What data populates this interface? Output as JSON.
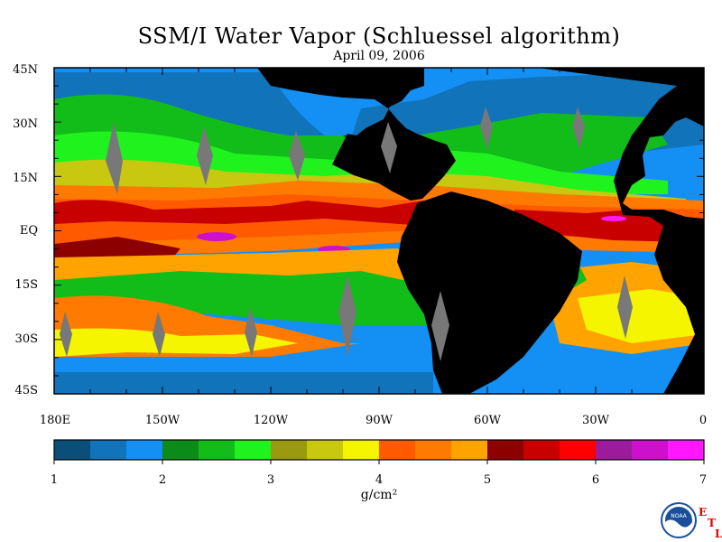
{
  "title": "SSM/I Water Vapor (Schluessel algorithm)",
  "subtitle": "April 09, 2006",
  "lat_labels": [
    "45N",
    "30N",
    "15N",
    "EQ",
    "15S",
    "30S",
    "45S"
  ],
  "lon_labels": [
    "180E",
    "150W",
    "120W",
    "90W",
    "60W",
    "30W",
    "0"
  ],
  "colorbar": {
    "ticks": [
      "1",
      "2",
      "3",
      "4",
      "5",
      "6",
      "7"
    ],
    "unit": "g/cm²",
    "colors": [
      "#0a4f7a",
      "#1173b9",
      "#148ff3",
      "#0b8c18",
      "#12bd1a",
      "#20f21e",
      "#9a9a10",
      "#c8c810",
      "#f5f500",
      "#ff5a00",
      "#ff7a00",
      "#ffa300",
      "#8c0000",
      "#c80000",
      "#ff0000",
      "#9c1a9c",
      "#cc10cc",
      "#ff18ff"
    ]
  },
  "logo": {
    "text": "NOAA",
    "letters": [
      "E",
      "T",
      "L"
    ]
  },
  "colors": {
    "land": "#000000",
    "gap": "#787878"
  }
}
